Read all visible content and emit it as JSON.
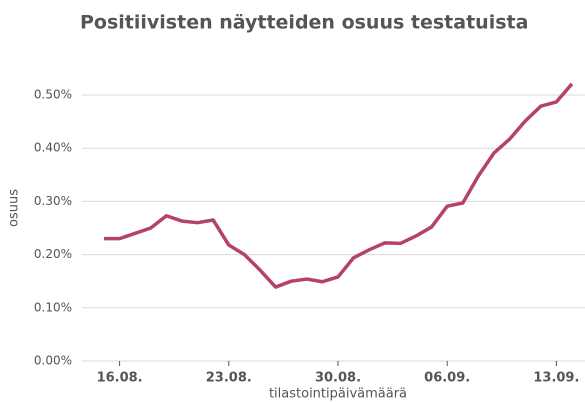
{
  "chart_data": {
    "type": "line",
    "title": "Positiivisten näytteiden osuus testatuista",
    "x_label": "tilastointipäivämäärä",
    "y_label": "osuus",
    "categories": [
      null,
      "16.08.",
      null,
      null,
      null,
      null,
      null,
      null,
      "23.08.",
      null,
      null,
      null,
      null,
      null,
      null,
      "30.08.",
      null,
      null,
      null,
      null,
      null,
      null,
      "06.09.",
      null,
      null,
      null,
      null,
      null,
      null,
      "13.09.",
      null
    ],
    "series": [
      {
        "name": "osuus",
        "color": "#b5416e",
        "values": [
          0.23,
          0.23,
          0.24,
          0.25,
          0.273,
          0.263,
          0.26,
          0.265,
          0.218,
          0.2,
          0.171,
          0.139,
          0.15,
          0.154,
          0.149,
          0.158,
          0.194,
          0.209,
          0.222,
          0.221,
          0.235,
          0.252,
          0.291,
          0.297,
          0.348,
          0.391,
          0.417,
          0.451,
          0.479,
          0.487,
          0.521
        ]
      }
    ],
    "ylim": [
      0,
      0.55
    ],
    "yticks": [
      {
        "value": 0,
        "label": "0.00%"
      },
      {
        "value": 0.1,
        "label": "0.10%"
      },
      {
        "value": 0.2,
        "label": "0.20%"
      },
      {
        "value": 0.3,
        "label": "0.30%"
      },
      {
        "value": 0.4,
        "label": "0.40%"
      },
      {
        "value": 0.5,
        "label": "0.50%"
      }
    ],
    "grid": true
  }
}
